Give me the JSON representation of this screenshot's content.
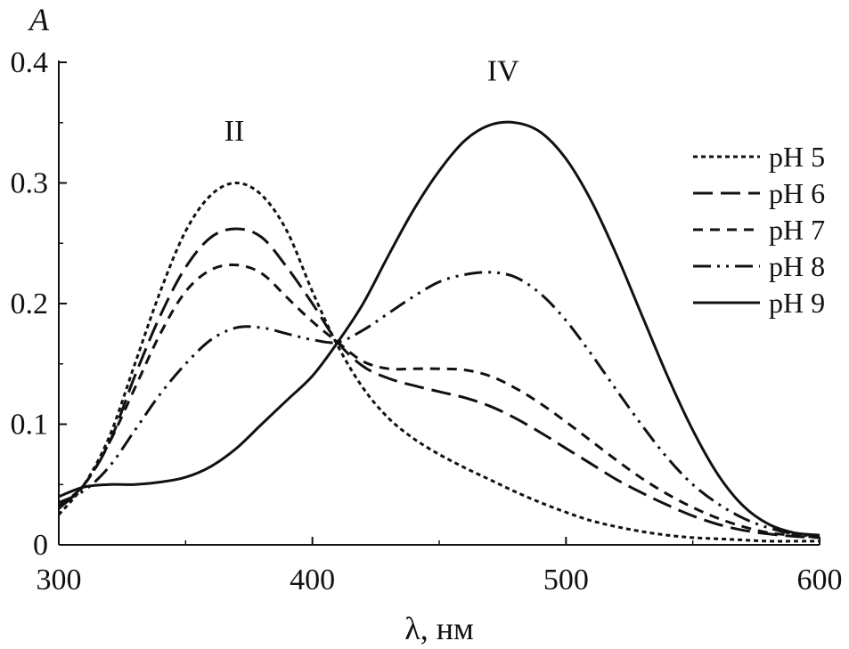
{
  "chart_data": {
    "type": "line",
    "title": "",
    "xlabel": "λ, нм",
    "ylabel": "A",
    "xlim": [
      300,
      600
    ],
    "ylim": [
      0,
      0.4
    ],
    "xticks": [
      300,
      400,
      500,
      600
    ],
    "xtick_labels": [
      "300",
      "400",
      "500",
      "600"
    ],
    "yticks": [
      0,
      0.1,
      0.2,
      0.3,
      0.4
    ],
    "ytick_labels": [
      "0",
      "0.1",
      "0.2",
      "0.3",
      "0.4"
    ],
    "grid": false,
    "legend_position": "right",
    "annotations": [
      {
        "text": "II",
        "x": 372,
        "y": 0.335
      },
      {
        "text": "IV",
        "x": 478,
        "y": 0.385
      }
    ],
    "series": [
      {
        "name": "pH 5",
        "style": "dotted",
        "x": [
          300,
          310,
          320,
          330,
          340,
          350,
          360,
          370,
          380,
          390,
          400,
          410,
          420,
          430,
          440,
          450,
          460,
          470,
          480,
          490,
          500,
          510,
          520,
          530,
          540,
          550,
          560,
          570,
          580,
          590,
          600
        ],
        "y": [
          0.025,
          0.05,
          0.09,
          0.15,
          0.21,
          0.26,
          0.29,
          0.3,
          0.29,
          0.26,
          0.21,
          0.165,
          0.13,
          0.105,
          0.088,
          0.075,
          0.064,
          0.054,
          0.044,
          0.035,
          0.027,
          0.02,
          0.015,
          0.011,
          0.008,
          0.006,
          0.005,
          0.004,
          0.003,
          0.003,
          0.003
        ]
      },
      {
        "name": "pH 6",
        "style": "long-dash",
        "x": [
          300,
          310,
          320,
          330,
          340,
          350,
          360,
          370,
          380,
          390,
          400,
          410,
          420,
          430,
          440,
          450,
          460,
          470,
          480,
          490,
          500,
          510,
          520,
          530,
          540,
          550,
          560,
          570,
          580,
          590,
          600
        ],
        "y": [
          0.03,
          0.05,
          0.085,
          0.14,
          0.19,
          0.23,
          0.255,
          0.262,
          0.255,
          0.23,
          0.2,
          0.168,
          0.148,
          0.138,
          0.132,
          0.127,
          0.122,
          0.115,
          0.105,
          0.093,
          0.08,
          0.067,
          0.054,
          0.043,
          0.033,
          0.024,
          0.017,
          0.012,
          0.009,
          0.007,
          0.006
        ]
      },
      {
        "name": "pH 7",
        "style": "short-dash",
        "x": [
          300,
          310,
          320,
          330,
          340,
          350,
          360,
          370,
          380,
          390,
          400,
          410,
          420,
          430,
          440,
          450,
          460,
          470,
          480,
          490,
          500,
          510,
          520,
          530,
          540,
          550,
          560,
          570,
          580,
          590,
          600
        ],
        "y": [
          0.032,
          0.05,
          0.085,
          0.13,
          0.175,
          0.21,
          0.228,
          0.232,
          0.225,
          0.205,
          0.185,
          0.168,
          0.152,
          0.146,
          0.146,
          0.146,
          0.145,
          0.14,
          0.13,
          0.117,
          0.102,
          0.086,
          0.07,
          0.055,
          0.042,
          0.031,
          0.022,
          0.015,
          0.01,
          0.008,
          0.006
        ]
      },
      {
        "name": "pH 8",
        "style": "dash-dot-dot",
        "x": [
          300,
          310,
          320,
          330,
          340,
          350,
          360,
          370,
          380,
          390,
          400,
          410,
          420,
          430,
          440,
          450,
          460,
          470,
          480,
          490,
          500,
          510,
          520,
          530,
          540,
          550,
          560,
          570,
          580,
          590,
          600
        ],
        "y": [
          0.035,
          0.045,
          0.065,
          0.095,
          0.125,
          0.15,
          0.17,
          0.18,
          0.18,
          0.175,
          0.17,
          0.168,
          0.178,
          0.192,
          0.206,
          0.218,
          0.224,
          0.226,
          0.222,
          0.208,
          0.186,
          0.158,
          0.128,
          0.099,
          0.072,
          0.05,
          0.034,
          0.022,
          0.014,
          0.009,
          0.007
        ]
      },
      {
        "name": "pH 9",
        "style": "solid",
        "x": [
          300,
          310,
          320,
          330,
          340,
          350,
          360,
          370,
          380,
          390,
          400,
          410,
          420,
          430,
          440,
          450,
          460,
          470,
          480,
          490,
          500,
          510,
          520,
          530,
          540,
          550,
          560,
          570,
          580,
          590,
          600
        ],
        "y": [
          0.04,
          0.048,
          0.05,
          0.05,
          0.052,
          0.056,
          0.065,
          0.08,
          0.1,
          0.12,
          0.14,
          0.168,
          0.2,
          0.24,
          0.278,
          0.31,
          0.335,
          0.348,
          0.35,
          0.342,
          0.32,
          0.285,
          0.24,
          0.19,
          0.14,
          0.095,
          0.058,
          0.032,
          0.017,
          0.01,
          0.008
        ]
      }
    ]
  }
}
